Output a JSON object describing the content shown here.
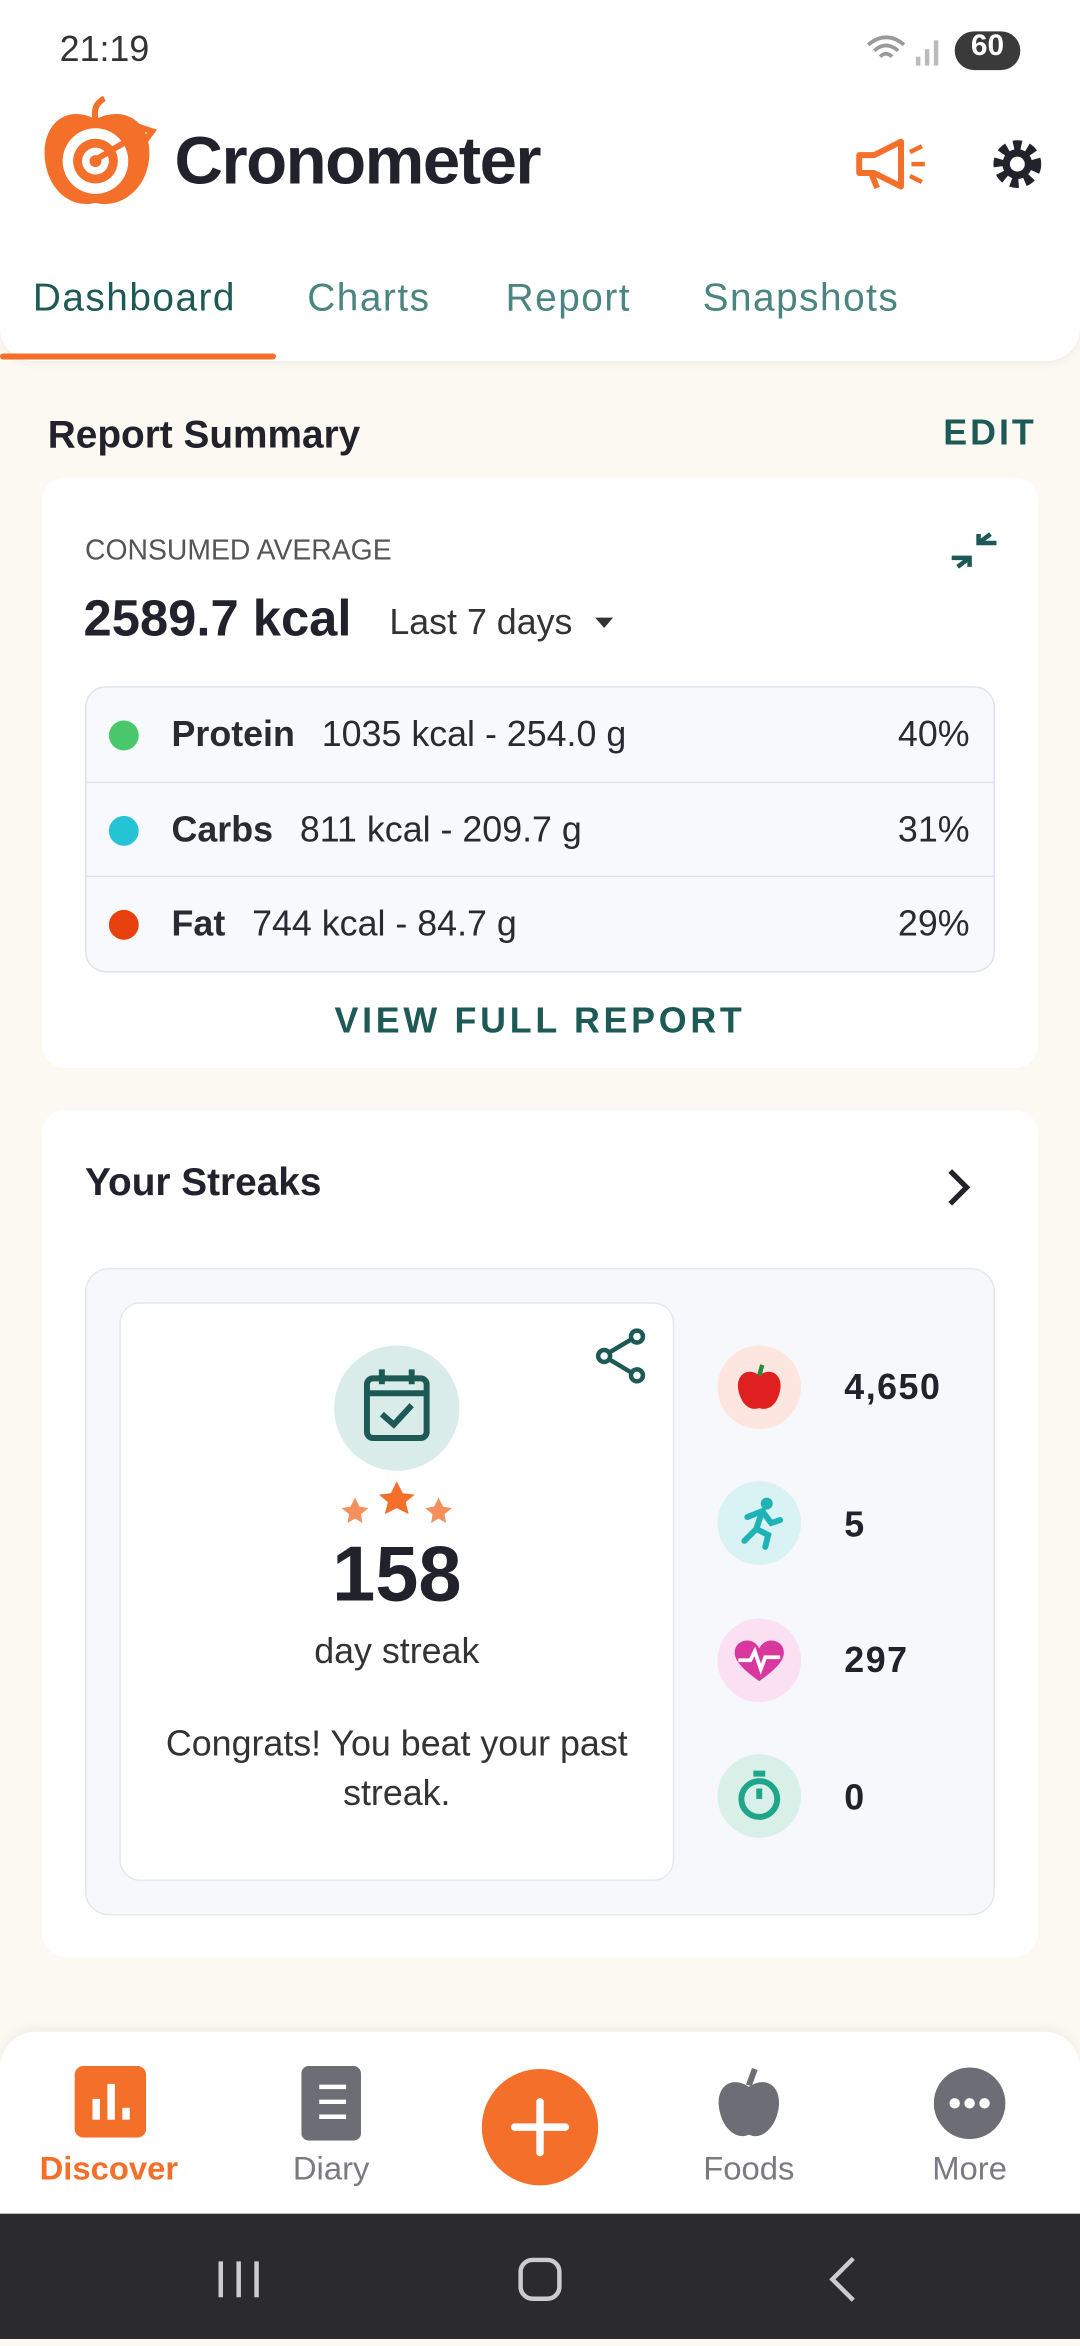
{
  "status_bar": {
    "time": "21:19",
    "battery": "60"
  },
  "header": {
    "app_name": "Cronometer"
  },
  "tabs": [
    "Dashboard",
    "Charts",
    "Report",
    "Snapshots"
  ],
  "report_summary": {
    "title": "Report Summary",
    "edit": "EDIT",
    "label": "CONSUMED AVERAGE",
    "total": "2589.7 kcal",
    "period": "Last 7 days",
    "macros": [
      {
        "name": "Protein",
        "detail": "1035 kcal - 254.0 g",
        "percent": "40%",
        "color": "#48c76b"
      },
      {
        "name": "Carbs",
        "detail": "811 kcal - 209.7 g",
        "percent": "31%",
        "color": "#24c3d6"
      },
      {
        "name": "Fat",
        "detail": "744 kcal - 84.7 g",
        "percent": "29%",
        "color": "#e8400f"
      }
    ],
    "link": "VIEW FULL REPORT"
  },
  "streaks": {
    "title": "Your Streaks",
    "count": "158",
    "unit": "day streak",
    "message": "Congrats! You beat your past streak.",
    "stats": [
      "4,650",
      "5",
      "297",
      "0"
    ]
  },
  "nav": [
    "Discover",
    "Diary",
    "Foods",
    "More"
  ]
}
